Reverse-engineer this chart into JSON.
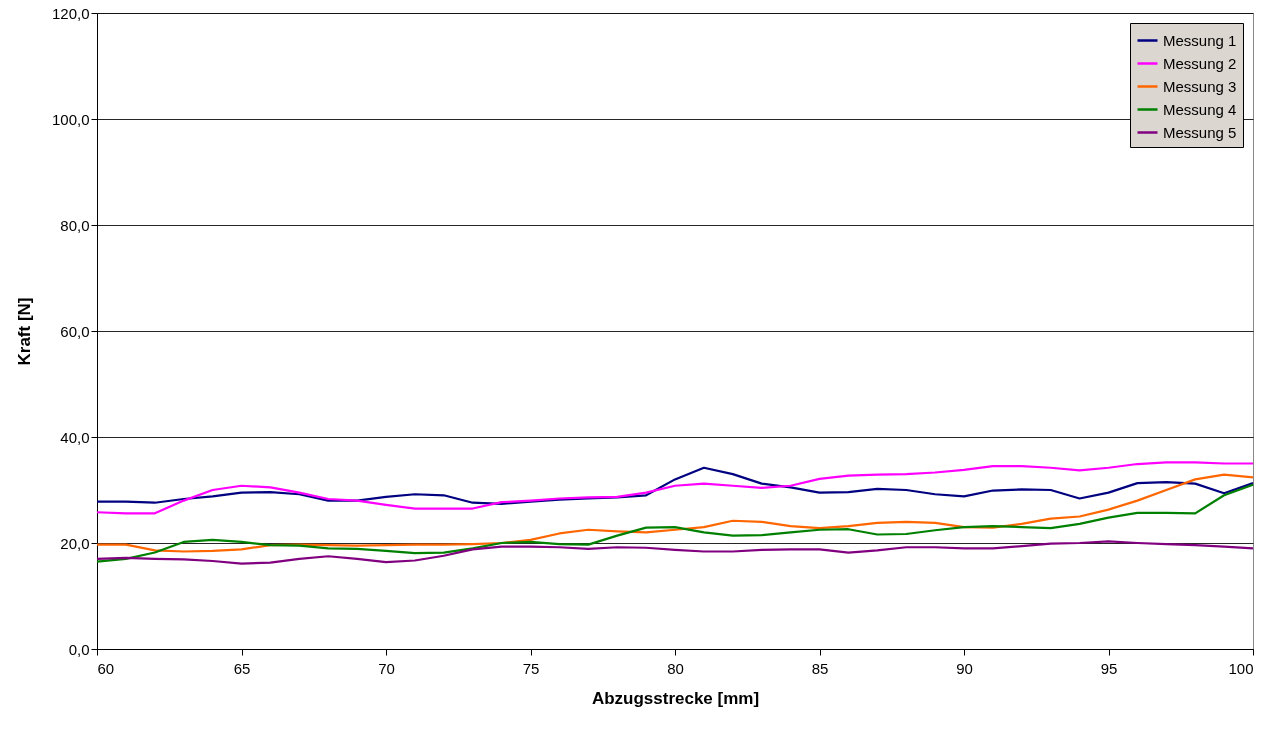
{
  "chart_data": {
    "type": "line",
    "xlabel": "Abzugsstrecke [mm]",
    "ylabel": "Kraft [N]",
    "x": [
      60,
      61,
      62,
      63,
      64,
      65,
      66,
      67,
      68,
      69,
      70,
      71,
      72,
      73,
      74,
      75,
      76,
      77,
      78,
      79,
      80,
      81,
      82,
      83,
      84,
      85,
      86,
      87,
      88,
      89,
      90,
      91,
      92,
      93,
      94,
      95,
      96,
      97,
      98,
      99,
      100
    ],
    "xlim": [
      60,
      100
    ],
    "xticks": [
      60,
      65,
      70,
      75,
      80,
      85,
      90,
      95,
      100
    ],
    "ylim": [
      0,
      120
    ],
    "yticks": [
      {
        "value": 0,
        "label": "0,0"
      },
      {
        "value": 20,
        "label": "20,0"
      },
      {
        "value": 40,
        "label": "40,0"
      },
      {
        "value": 60,
        "label": "60,0"
      },
      {
        "value": 80,
        "label": "80,0"
      },
      {
        "value": 100,
        "label": "100,0"
      },
      {
        "value": 120,
        "label": "120,0"
      }
    ],
    "grid": "y",
    "legend": "top right",
    "series": [
      {
        "name": "Messung 1",
        "color": "#000080",
        "values": [
          27.8,
          27.8,
          27.6,
          28.3,
          28.8,
          29.5,
          29.6,
          29.2,
          28.0,
          28.0,
          28.7,
          29.2,
          29.0,
          27.6,
          27.4,
          27.8,
          28.2,
          28.4,
          28.6,
          29.0,
          32.0,
          34.2,
          33.0,
          31.2,
          30.5,
          29.5,
          29.6,
          30.2,
          30.0,
          29.2,
          28.8,
          29.9,
          30.1,
          30.0,
          28.4,
          29.5,
          31.3,
          31.5,
          31.2,
          29.4,
          31.3
        ]
      },
      {
        "name": "Messung 2",
        "color": "#ff00ff",
        "values": [
          25.8,
          25.6,
          25.6,
          28.0,
          30.0,
          30.8,
          30.5,
          29.5,
          28.3,
          28.0,
          27.2,
          26.5,
          26.5,
          26.5,
          27.7,
          28.0,
          28.4,
          28.6,
          28.7,
          29.5,
          30.8,
          31.2,
          30.8,
          30.4,
          30.8,
          32.1,
          32.7,
          32.9,
          33.0,
          33.3,
          33.8,
          34.5,
          34.5,
          34.2,
          33.7,
          34.2,
          34.9,
          35.2,
          35.2,
          35.0,
          35.0
        ]
      },
      {
        "name": "Messung 3",
        "color": "#ff6600",
        "values": [
          19.7,
          19.7,
          18.6,
          18.4,
          18.5,
          18.8,
          19.6,
          19.7,
          19.6,
          19.5,
          19.6,
          19.7,
          19.7,
          19.8,
          20.0,
          20.6,
          21.8,
          22.5,
          22.2,
          22.0,
          22.5,
          23.0,
          24.2,
          24.0,
          23.2,
          22.8,
          23.2,
          23.8,
          24.0,
          23.8,
          23.0,
          22.9,
          23.6,
          24.6,
          25.0,
          26.3,
          28.0,
          30.0,
          32.0,
          32.9,
          32.4
        ]
      },
      {
        "name": "Messung 4",
        "color": "#008000",
        "values": [
          16.5,
          17.0,
          18.2,
          20.2,
          20.6,
          20.2,
          19.6,
          19.5,
          19.0,
          18.9,
          18.5,
          18.1,
          18.2,
          19.0,
          20.0,
          20.2,
          19.8,
          19.7,
          21.4,
          22.9,
          23.0,
          22.0,
          21.4,
          21.5,
          22.0,
          22.5,
          22.6,
          21.6,
          21.7,
          22.4,
          23.0,
          23.2,
          23.0,
          22.8,
          23.6,
          24.8,
          25.7,
          25.7,
          25.6,
          29.0,
          31.0
        ]
      },
      {
        "name": "Messung 5",
        "color": "#800080",
        "values": [
          17.0,
          17.2,
          17.0,
          16.9,
          16.6,
          16.1,
          16.3,
          17.0,
          17.5,
          17.0,
          16.4,
          16.7,
          17.6,
          18.8,
          19.3,
          19.3,
          19.2,
          18.9,
          19.2,
          19.1,
          18.7,
          18.4,
          18.4,
          18.7,
          18.8,
          18.8,
          18.2,
          18.6,
          19.2,
          19.2,
          19.0,
          19.0,
          19.4,
          19.9,
          20.0,
          20.3,
          20.0,
          19.8,
          19.6,
          19.3,
          19.0
        ]
      }
    ]
  }
}
